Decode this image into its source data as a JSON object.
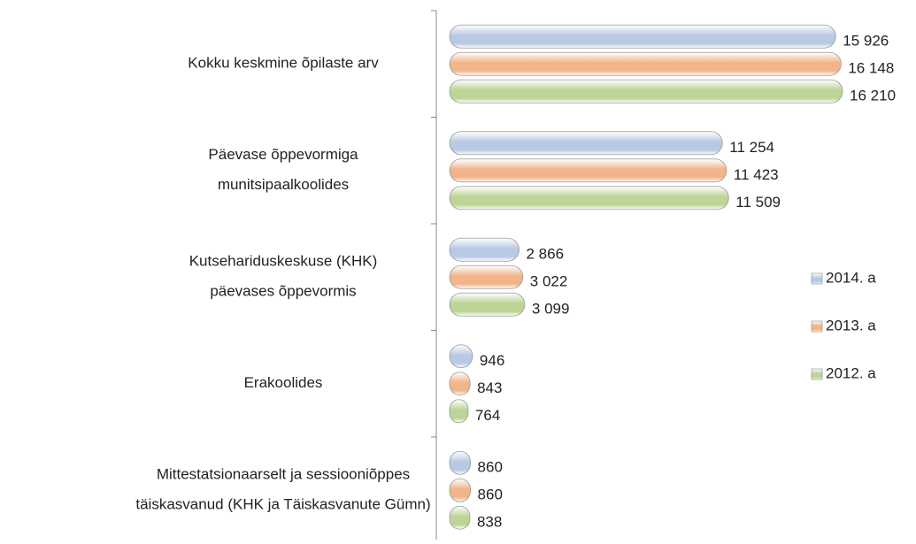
{
  "chart_data": {
    "type": "hbar",
    "categories": [
      "Kokku keskmine õpilaste arv",
      "Päevase õppevormiga\nmunitsipaalkoolides",
      "Kutsehariduskeskuse (KHK)\npäevases õppevormis",
      "Erakoolides",
      "Mittestatsionaarselt ja sessiooniõppes\ntäiskasvanud (KHK ja Täiskasvanute Gümn)"
    ],
    "series": [
      {
        "name": "2014. a",
        "color": "#b9c9e4",
        "values": [
          15926,
          11254,
          2866,
          946,
          860
        ],
        "value_labels": [
          "15 926",
          "11 254",
          "2 866",
          "946",
          "860"
        ]
      },
      {
        "name": "2013. a",
        "color": "#f2b48a",
        "values": [
          16148,
          11423,
          3022,
          843,
          860
        ],
        "value_labels": [
          "16 148",
          "11 423",
          "3 022",
          "843",
          "860"
        ]
      },
      {
        "name": "2012. a",
        "color": "#bcd496",
        "values": [
          16210,
          11509,
          3099,
          764,
          838
        ],
        "value_labels": [
          "16 210",
          "11 509",
          "3 099",
          "764",
          "838"
        ]
      }
    ],
    "xlim": [
      0,
      16500
    ],
    "legend": "right"
  }
}
